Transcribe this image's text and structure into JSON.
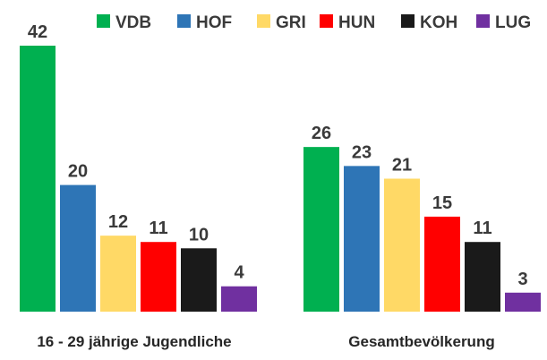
{
  "chart_data": {
    "type": "bar",
    "categories": [
      "16 - 29 jährige Jugendliche",
      "Gesamtbevölkerung"
    ],
    "series": [
      {
        "name": "VDB",
        "color": "#00b050",
        "values": [
          42,
          26
        ]
      },
      {
        "name": "HOF",
        "color": "#2e75b6",
        "values": [
          20,
          23
        ]
      },
      {
        "name": "GRI",
        "color": "#ffd966",
        "values": [
          12,
          21
        ]
      },
      {
        "name": "HUN",
        "color": "#ff0000",
        "values": [
          11,
          15
        ]
      },
      {
        "name": "KOH",
        "color": "#1a1a1a",
        "values": [
          10,
          11
        ]
      },
      {
        "name": "LUG",
        "color": "#7030a0",
        "values": [
          4,
          3
        ]
      }
    ],
    "ylim": [
      0,
      42
    ],
    "grid": false,
    "legend": "top-right",
    "data_labels": true
  }
}
